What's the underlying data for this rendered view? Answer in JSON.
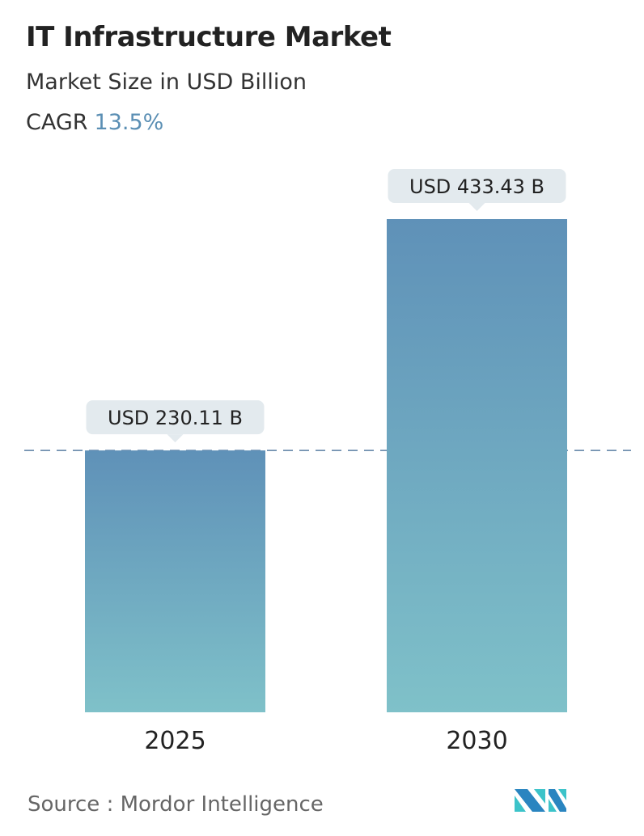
{
  "title": "IT Infrastructure Market",
  "subtitle": "Market Size in USD Billion",
  "cagr_label": "CAGR",
  "cagr_value": "13.5%",
  "source": "Source :  Mordor Intelligence",
  "logo_text": "Mordor Intelligence",
  "colors": {
    "bar_top": "#5f91b8",
    "bar_bottom": "#7fc1c9",
    "label_bg": "#e3eaee",
    "dash": "#5a7fa3",
    "accent": "#5b8fb4"
  },
  "chart_data": {
    "type": "bar",
    "categories": [
      "2025",
      "2030"
    ],
    "values": [
      230.11,
      433.43
    ],
    "data_labels": [
      "USD 230.11 B",
      "USD 433.43 B"
    ],
    "title": "IT Infrastructure Market",
    "ylabel": "Market Size in USD Billion",
    "reference_line": 230.11,
    "grid": false
  }
}
